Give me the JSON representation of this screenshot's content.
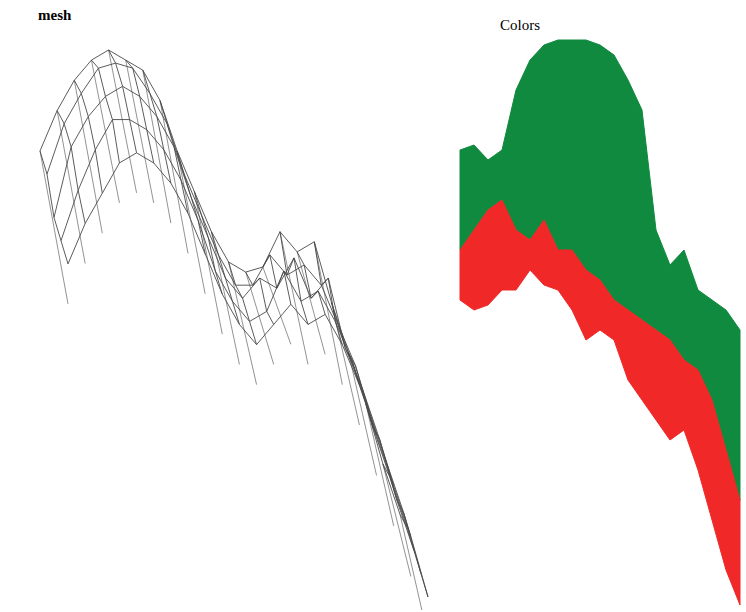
{
  "chart_data": [
    {
      "type": "mesh",
      "title": "mesh",
      "tick_labels": false,
      "color": "#4a4a4a",
      "z": [
        [
          460,
          500,
          530,
          550,
          560,
          550,
          540,
          510,
          460,
          420,
          380,
          350,
          340,
          345,
          380,
          360,
          370,
          310,
          260,
          210,
          150,
          100
        ],
        [
          440,
          490,
          520,
          545,
          550,
          545,
          520,
          490,
          440,
          400,
          360,
          330,
          330,
          360,
          340,
          350,
          330,
          290,
          250,
          190,
          140,
          90
        ],
        [
          400,
          470,
          500,
          520,
          530,
          520,
          500,
          470,
          420,
          380,
          340,
          320,
          340,
          330,
          360,
          320,
          340,
          270,
          230,
          180,
          120,
          70
        ],
        [
          380,
          430,
          470,
          500,
          500,
          490,
          470,
          440,
          400,
          350,
          320,
          300,
          310,
          350,
          320,
          330,
          300,
          260,
          210,
          160,
          110,
          50
        ],
        [
          360,
          400,
          430,
          460,
          470,
          460,
          440,
          410,
          370,
          330,
          300,
          280,
          300,
          320,
          300,
          310,
          280,
          240,
          190,
          140,
          90,
          30
        ]
      ]
    },
    {
      "type": "area",
      "title": "Colors",
      "tick_labels": false,
      "x": [
        0,
        1,
        2,
        3,
        4,
        5,
        6,
        7,
        8,
        9,
        10,
        11,
        12,
        13,
        14,
        15,
        16,
        17,
        18,
        19,
        20
      ],
      "series": [
        {
          "color": "#108a3e",
          "values": [
            462,
            467,
            452,
            462,
            522,
            552,
            567,
            572,
            572,
            572,
            567,
            557,
            532,
            502,
            382,
            347,
            362,
            322,
            312,
            302,
            282
          ],
          "low": [
            362,
            382,
            402,
            412,
            382,
            372,
            392,
            362,
            362,
            342,
            332,
            312,
            302,
            292,
            282,
            272,
            252,
            242,
            212,
            162,
            112
          ]
        },
        {
          "color": "#f02828",
          "values": [
            362,
            382,
            402,
            412,
            382,
            372,
            392,
            362,
            362,
            342,
            332,
            312,
            302,
            292,
            282,
            272,
            252,
            242,
            212,
            162,
            112
          ],
          "low": [
            312,
            302,
            307,
            322,
            322,
            342,
            327,
            322,
            302,
            272,
            282,
            272,
            232,
            212,
            192,
            172,
            182,
            142,
            92,
            42,
            7
          ]
        }
      ]
    }
  ]
}
